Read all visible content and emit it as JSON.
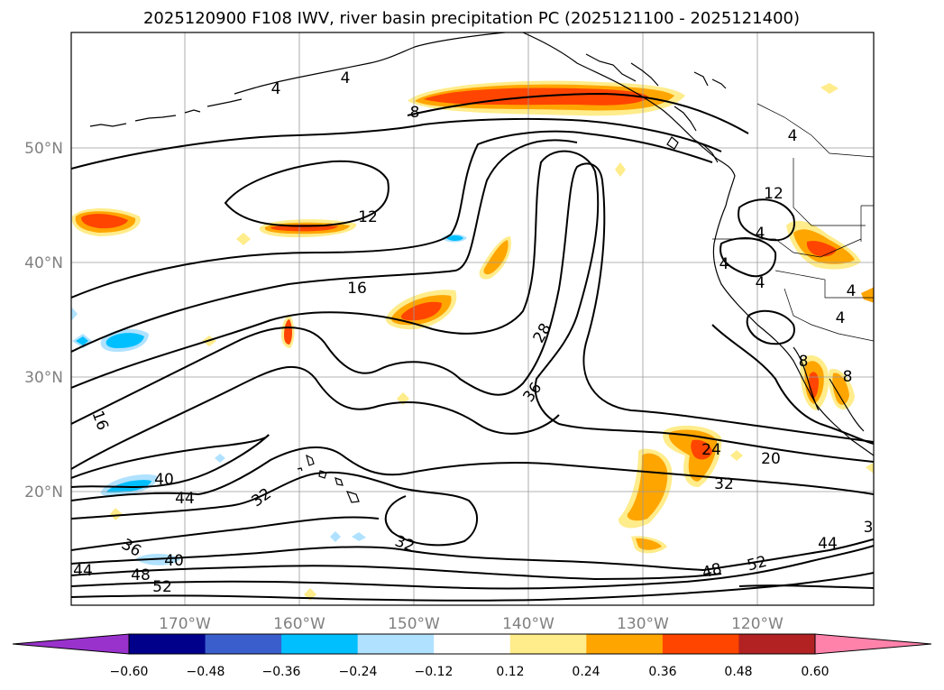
{
  "title": "2025120900 F108 IWV, river basin precipitation PC (2025121100 - 2025121400)",
  "map": {
    "lat_labels": [
      "50°N",
      "40°N",
      "30°N",
      "20°N"
    ],
    "lon_labels": [
      "170°W",
      "160°W",
      "150°W",
      "140°W",
      "130°W",
      "120°W"
    ]
  },
  "contour_labels": [
    "4",
    "4",
    "8",
    "4",
    "12",
    "12",
    "4",
    "4",
    "4",
    "4",
    "4",
    "16",
    "28",
    "36",
    "16",
    "40",
    "44",
    "32",
    "8",
    "8",
    "24",
    "20",
    "32",
    "3",
    "36",
    "40",
    "44",
    "48",
    "52",
    "32",
    "44",
    "48",
    "52"
  ],
  "colorbar": {
    "tick_labels": [
      "−0.60",
      "−0.48",
      "−0.36",
      "−0.24",
      "−0.12",
      "0.12",
      "0.24",
      "0.36",
      "0.48",
      "0.60"
    ],
    "colors": [
      "#9932cc",
      "#00008b",
      "#3a5fcd",
      "#00bfff",
      "#b0e2ff",
      "#ffffff",
      "#ffec8b",
      "#ffa500",
      "#ff4500",
      "#b22222",
      "#ff82ab"
    ]
  }
}
